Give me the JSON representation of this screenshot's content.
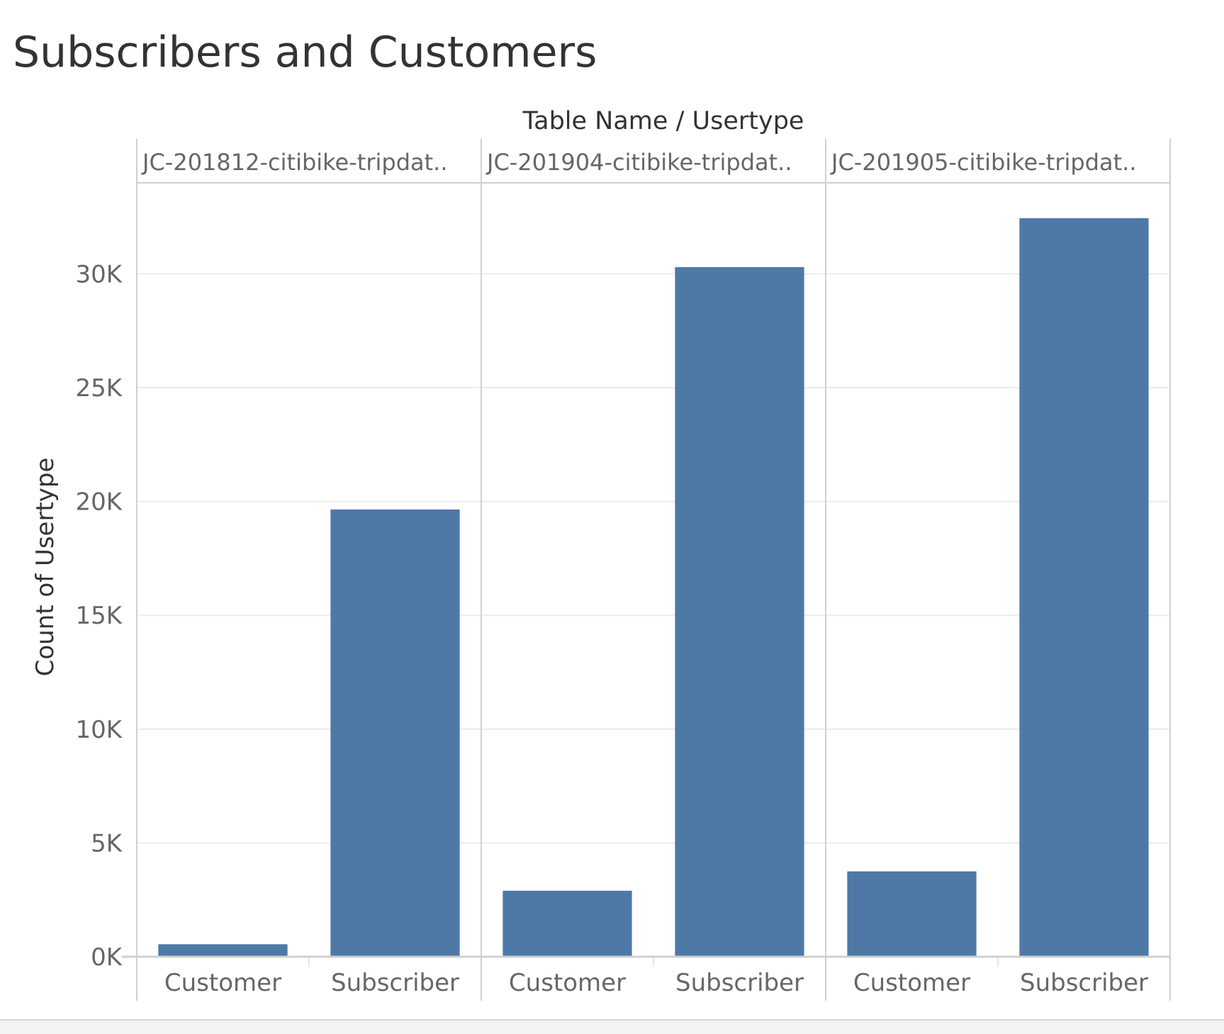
{
  "chart_data": {
    "type": "bar",
    "title": "Subscribers and Customers",
    "header_title": "Table Name  /  Usertype",
    "ylabel": "Count of Usertype",
    "ylim": [
      0,
      34000
    ],
    "yticks": [
      0,
      5000,
      10000,
      15000,
      20000,
      25000,
      30000
    ],
    "ytick_labels": [
      "0K",
      "5K",
      "10K",
      "15K",
      "20K",
      "25K",
      "30K"
    ],
    "bar_color": "#4e79a7",
    "grid": true,
    "panels": [
      {
        "label": "JC-201812-citibike-tripdat..",
        "categories": [
          "Customer",
          "Subscriber"
        ],
        "values": [
          550,
          19650
        ]
      },
      {
        "label": "JC-201904-citibike-tripdat..",
        "categories": [
          "Customer",
          "Subscriber"
        ],
        "values": [
          2900,
          30300
        ]
      },
      {
        "label": "JC-201905-citibike-tripdat..",
        "categories": [
          "Customer",
          "Subscriber"
        ],
        "values": [
          3750,
          32450
        ]
      }
    ]
  }
}
